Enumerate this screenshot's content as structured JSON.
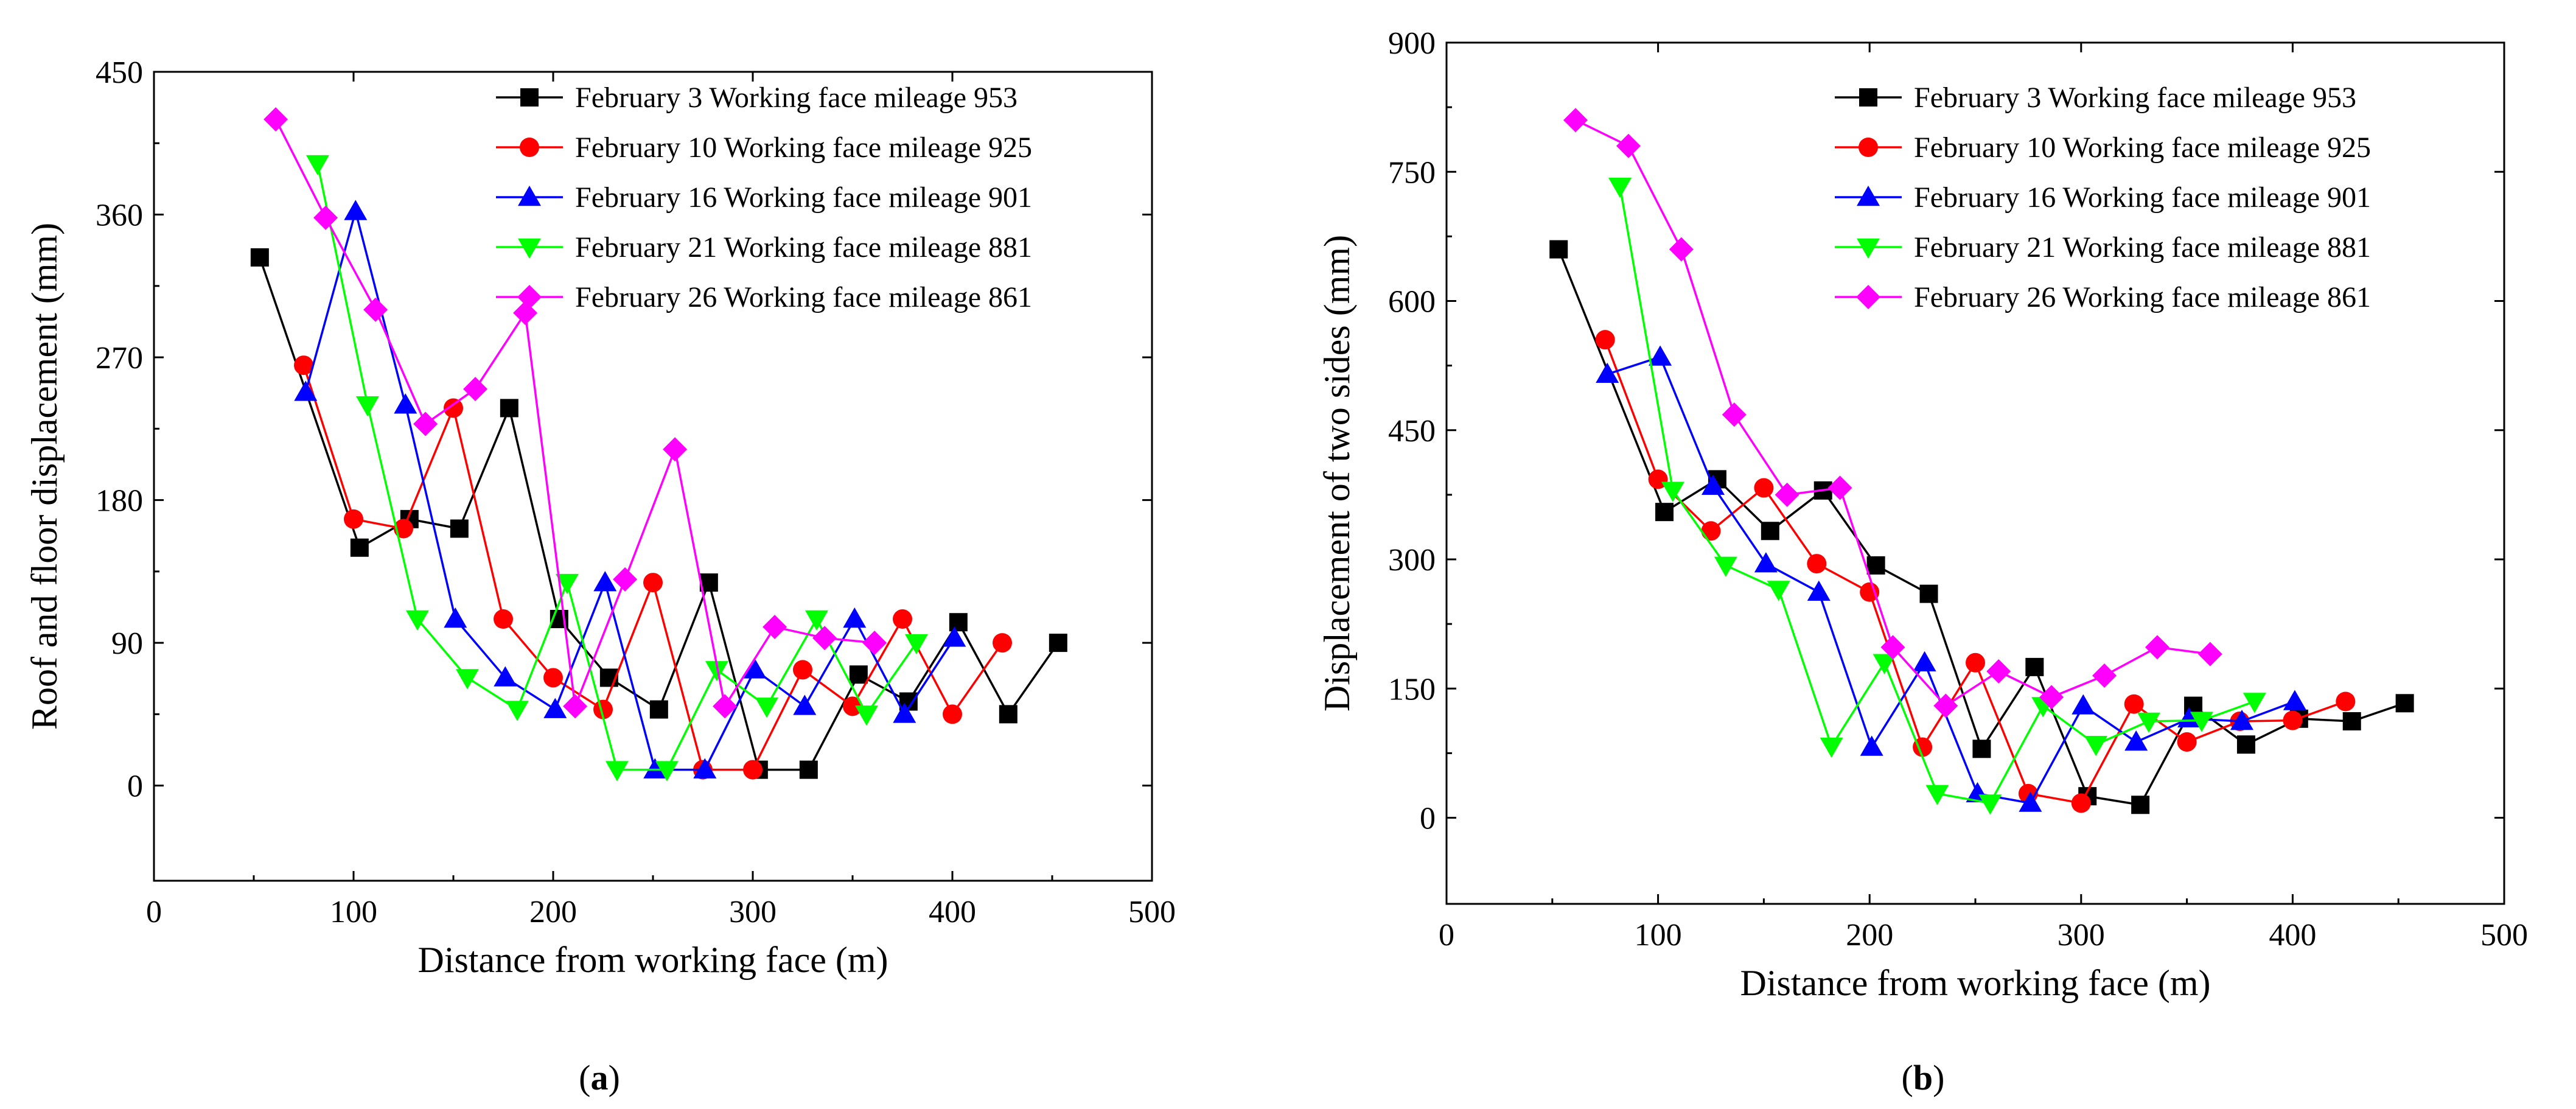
{
  "palette": {
    "feb3": "#000000",
    "feb10": "#ff0000",
    "feb16": "#0000ff",
    "feb21": "#00ff00",
    "feb26": "#ff00ff"
  },
  "chart_data": [
    {
      "type": "line",
      "panel_label": "(a)",
      "panel_letter": "a",
      "xlabel": "Distance from working face (m)",
      "ylabel": "Roof and floor displacement (mm)",
      "xlim": [
        0,
        500
      ],
      "ylim": [
        -60,
        450
      ],
      "xticks": [
        0,
        100,
        200,
        300,
        400,
        500
      ],
      "yticks": [
        0,
        90,
        180,
        270,
        360,
        450
      ],
      "legend_position": "top-right",
      "series": [
        {
          "name": "February 3 Working face mileage 953",
          "color": "#000000",
          "marker": "square",
          "x": [
            53,
            103,
            128,
            153,
            178,
            203,
            228,
            253,
            278,
            303,
            328,
            353,
            378,
            403,
            428,
            453
          ],
          "y": [
            333,
            150,
            168,
            162,
            238,
            105,
            68,
            48,
            128,
            10,
            10,
            70,
            53,
            103,
            45,
            90
          ]
        },
        {
          "name": "February 10 Working face mileage 925",
          "color": "#ff0000",
          "marker": "circle",
          "x": [
            75,
            100,
            125,
            150,
            175,
            200,
            225,
            250,
            275,
            300,
            325,
            350,
            375,
            400,
            425
          ],
          "y": [
            265,
            168,
            162,
            238,
            105,
            68,
            48,
            128,
            10,
            10,
            73,
            50,
            105,
            45,
            90
          ]
        },
        {
          "name": "February 16 Working face mileage 901",
          "color": "#0000ff",
          "marker": "triangle-up",
          "x": [
            76,
            101,
            126,
            151,
            176,
            201,
            226,
            251,
            276,
            301,
            326,
            351,
            376,
            401
          ],
          "y": [
            248,
            362,
            240,
            105,
            68,
            48,
            128,
            10,
            10,
            73,
            50,
            105,
            45,
            93
          ]
        },
        {
          "name": "February 21 Working face mileage 881",
          "color": "#00ff00",
          "marker": "triangle-down",
          "x": [
            82,
            107,
            132,
            157,
            182,
            207,
            232,
            257,
            282,
            307,
            332,
            357,
            382
          ],
          "y": [
            392,
            240,
            105,
            68,
            48,
            128,
            10,
            10,
            73,
            50,
            105,
            45,
            90
          ]
        },
        {
          "name": "February 26 Working face mileage 861",
          "color": "#ff00ff",
          "marker": "diamond",
          "x": [
            61,
            86,
            111,
            136,
            161,
            186,
            211,
            236,
            261,
            286,
            311,
            336,
            361
          ],
          "y": [
            420,
            358,
            300,
            228,
            250,
            298,
            50,
            130,
            212,
            50,
            100,
            93,
            90
          ]
        }
      ]
    },
    {
      "type": "line",
      "panel_label": "(b)",
      "panel_letter": "b",
      "xlabel": "Distance from working face (m)",
      "ylabel": "Displacement of two sides (mm)",
      "xlim": [
        0,
        500
      ],
      "ylim": [
        -100,
        900
      ],
      "xticks": [
        0,
        100,
        200,
        300,
        400,
        500
      ],
      "yticks": [
        0,
        150,
        300,
        450,
        600,
        750,
        900
      ],
      "legend_position": "top-right",
      "series": [
        {
          "name": "February 3 Working face mileage 953",
          "color": "#000000",
          "marker": "square",
          "x": [
            53,
            103,
            128,
            153,
            178,
            203,
            228,
            253,
            278,
            303,
            328,
            353,
            378,
            403,
            428,
            453
          ],
          "y": [
            660,
            355,
            393,
            333,
            380,
            293,
            260,
            80,
            175,
            25,
            15,
            130,
            85,
            115,
            112,
            133
          ]
        },
        {
          "name": "February 10 Working face mileage 925",
          "color": "#ff0000",
          "marker": "circle",
          "x": [
            75,
            100,
            125,
            150,
            175,
            200,
            225,
            250,
            275,
            300,
            325,
            350,
            375,
            400,
            425
          ],
          "y": [
            555,
            393,
            333,
            383,
            295,
            262,
            82,
            180,
            28,
            17,
            132,
            88,
            112,
            113,
            135
          ]
        },
        {
          "name": "February 16 Working face mileage 901",
          "color": "#0000ff",
          "marker": "triangle-up",
          "x": [
            76,
            101,
            126,
            151,
            176,
            201,
            226,
            251,
            276,
            301,
            326,
            351,
            376,
            401
          ],
          "y": [
            515,
            535,
            385,
            295,
            262,
            82,
            180,
            28,
            17,
            130,
            88,
            115,
            112,
            135
          ]
        },
        {
          "name": "February 21 Working face mileage 881",
          "color": "#00ff00",
          "marker": "triangle-down",
          "x": [
            82,
            107,
            132,
            157,
            182,
            207,
            232,
            257,
            282,
            307,
            332,
            357,
            382
          ],
          "y": [
            733,
            380,
            293,
            265,
            83,
            180,
            28,
            17,
            130,
            85,
            112,
            113,
            135
          ]
        },
        {
          "name": "February 26 Working face mileage 861",
          "color": "#ff00ff",
          "marker": "diamond",
          "x": [
            61,
            86,
            111,
            136,
            161,
            186,
            211,
            236,
            261,
            286,
            311,
            336,
            361
          ],
          "y": [
            810,
            780,
            660,
            468,
            375,
            383,
            198,
            130,
            170,
            140,
            165,
            198,
            190
          ]
        }
      ]
    }
  ]
}
